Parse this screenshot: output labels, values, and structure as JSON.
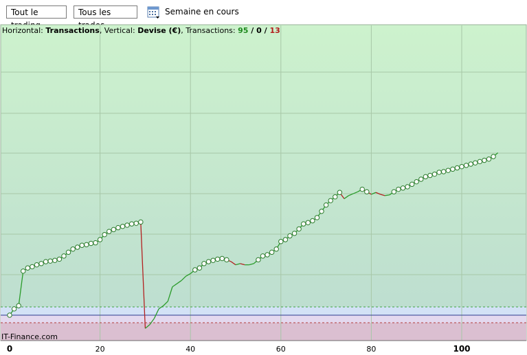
{
  "toolbar": {
    "filter1": "Tout le trading",
    "filter2": "Tous les trades",
    "calendar_icon": "calendar-icon",
    "period": "Semaine en cours"
  },
  "info": {
    "h_prefix": "Horizontal: ",
    "h_value": "Transactions",
    "v_prefix": ", Vertical: ",
    "v_value": "Devise (€)",
    "t_prefix": ", Transactions: ",
    "wins": "95",
    "even": "0",
    "losses": "13",
    "sep": " / "
  },
  "brand": "IT-Finance.com",
  "colors": {
    "up": "#2a9b2a",
    "down": "#b32020",
    "bg_top": "#cdf2cd",
    "bg_bottom": "#b9ddd2",
    "band_blue": "#d6e4f7",
    "band_pink": "#dbbfd0"
  },
  "chart_data": {
    "type": "line",
    "x_ticks": [
      "0",
      "20",
      "40",
      "60",
      "80",
      "100"
    ],
    "x": [
      0,
      1,
      2,
      3,
      4,
      5,
      6,
      7,
      8,
      9,
      10,
      11,
      12,
      13,
      14,
      15,
      16,
      17,
      18,
      19,
      20,
      21,
      22,
      23,
      24,
      25,
      26,
      27,
      28,
      29,
      30,
      31,
      32,
      33,
      34,
      35,
      36,
      37,
      38,
      39,
      40,
      41,
      42,
      43,
      44,
      45,
      46,
      47,
      48,
      49,
      50,
      51,
      52,
      53,
      54,
      55,
      56,
      57,
      58,
      59,
      60,
      61,
      62,
      63,
      64,
      65,
      66,
      67,
      68,
      69,
      70,
      71,
      72,
      73,
      74,
      75,
      76,
      77,
      78,
      79,
      80,
      81,
      82,
      83,
      84,
      85,
      86,
      87,
      88,
      89,
      90,
      91,
      92,
      93,
      94,
      95,
      96,
      97,
      98,
      99,
      100,
      101,
      102,
      103,
      104,
      105,
      106,
      107,
      108
    ],
    "y": [
      0,
      10,
      15,
      70,
      75,
      77,
      80,
      82,
      85,
      86,
      87,
      89,
      94,
      100,
      105,
      108,
      111,
      112,
      114,
      115,
      120,
      128,
      133,
      136,
      139,
      141,
      143,
      145,
      146,
      148,
      -21,
      -15,
      -5,
      10,
      15,
      22,
      45,
      50,
      55,
      62,
      66,
      72,
      75,
      82,
      85,
      87,
      89,
      90,
      88,
      85,
      80,
      82,
      80,
      80,
      82,
      88,
      94,
      96,
      100,
      105,
      117,
      120,
      126,
      130,
      137,
      145,
      147,
      150,
      155,
      165,
      175,
      182,
      188,
      195,
      185,
      190,
      193,
      196,
      200,
      196,
      192,
      195,
      192,
      190,
      191,
      196,
      200,
      202,
      204,
      208,
      212,
      216,
      220,
      222,
      224,
      227,
      228,
      230,
      232,
      234,
      236,
      238,
      240,
      242,
      244,
      246,
      248,
      252,
      258
    ],
    "markers_at": [
      0,
      1,
      2,
      3,
      4,
      5,
      6,
      7,
      8,
      9,
      10,
      11,
      12,
      13,
      14,
      15,
      16,
      17,
      18,
      19,
      20,
      21,
      22,
      23,
      24,
      25,
      26,
      27,
      28,
      29,
      41,
      42,
      43,
      44,
      45,
      46,
      47,
      48,
      55,
      56,
      57,
      58,
      59,
      60,
      61,
      62,
      63,
      64,
      65,
      66,
      67,
      68,
      69,
      70,
      71,
      72,
      73,
      78,
      79,
      85,
      86,
      87,
      88,
      89,
      90,
      91,
      92,
      93,
      94,
      95,
      96,
      97,
      98,
      99,
      100,
      101,
      102,
      103,
      104,
      105,
      106,
      107
    ],
    "xlim": [
      0,
      115
    ],
    "ylim": [
      -40,
      280
    ],
    "grid": true
  }
}
